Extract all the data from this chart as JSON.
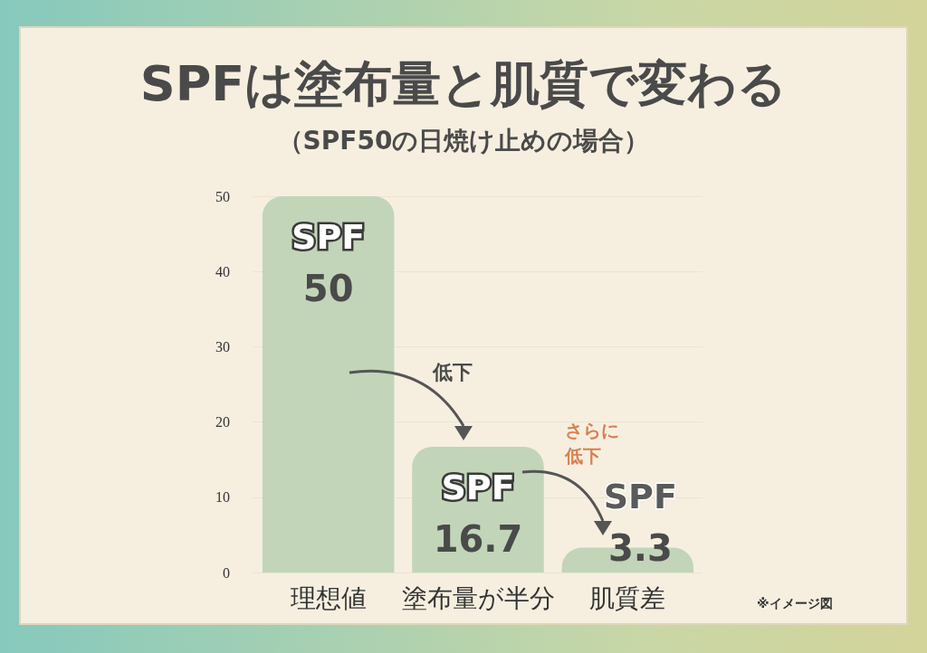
{
  "chart_data": {
    "type": "bar",
    "title": "SPFは塗布量と肌質で変わる",
    "subtitle": "（SPF50の日焼け止めの場合）",
    "categories": [
      "理想値",
      "塗布量が半分",
      "肌質差"
    ],
    "values": [
      50,
      16.7,
      3.3
    ],
    "color": "#c2d5b8",
    "value_labels": [
      "SPF\n50",
      "SPF\n16.7",
      "SPF\n3.3"
    ],
    "ylim": [
      0,
      50
    ],
    "yticks": [
      0,
      10,
      20,
      30,
      40,
      50
    ],
    "grid": "y",
    "annotations": [
      "低下",
      "さらに低下",
      "※イメージ図"
    ]
  }
}
